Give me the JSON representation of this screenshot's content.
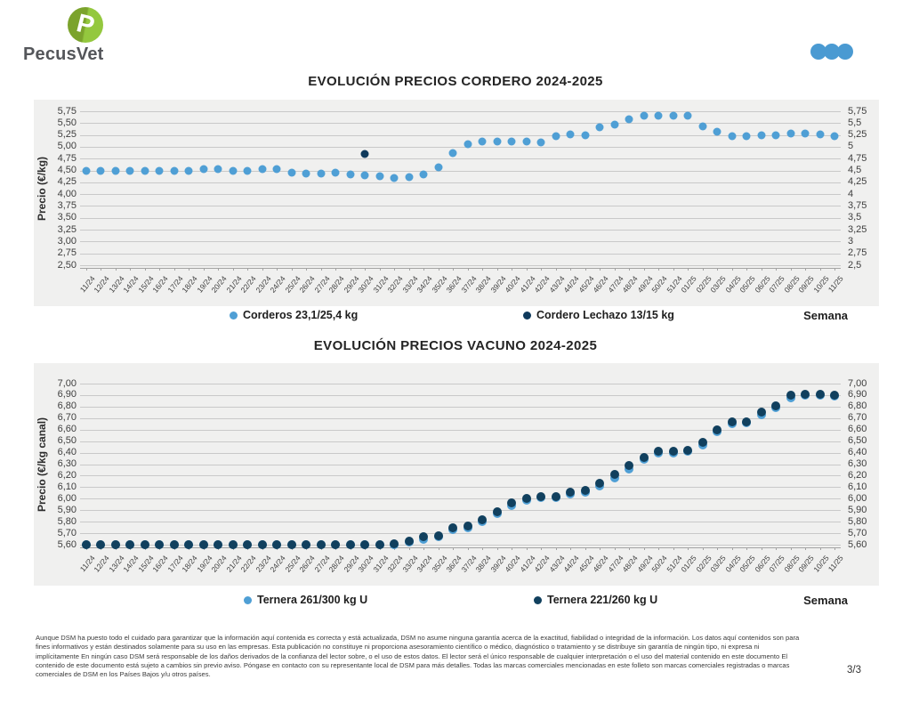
{
  "logo": {
    "text": "PecusVet",
    "letter": "P",
    "green_dark": "#7ba32c",
    "green_light": "#94c83e"
  },
  "header": {
    "dots_color": "#4a9ad2"
  },
  "chart_data": [
    {
      "type": "scatter",
      "title": "EVOLUCIÓN PRECIOS CORDERO 2024-2025",
      "ylabel": "Precio (€/kg)",
      "xlabel": "Semana",
      "ylim": [
        2.5,
        5.75
      ],
      "ystep": 0.25,
      "grid": true,
      "legend_position": "bottom",
      "ytick_labels_left": [
        "5,75",
        "5,50",
        "5,25",
        "5,00",
        "4,75",
        "4,50",
        "4,25",
        "4,00",
        "3,75",
        "3,50",
        "3,25",
        "3,00",
        "2,75",
        "2,50"
      ],
      "ytick_labels_right": [
        "5,75",
        "5,5",
        "5,25",
        "5",
        "4,75",
        "4,5",
        "4,25",
        "4",
        "3,75",
        "3,5",
        "3,25",
        "3",
        "2,75",
        "2,5"
      ],
      "categories": [
        "11/24",
        "12/24",
        "13/24",
        "14/24",
        "15/24",
        "16/24",
        "17/24",
        "18/24",
        "19/24",
        "20/24",
        "21/24",
        "22/24",
        "23/24",
        "24/24",
        "25/24",
        "26/24",
        "27/24",
        "28/24",
        "29/24",
        "30/24",
        "31/24",
        "32/24",
        "33/24",
        "34/24",
        "35/24",
        "36/24",
        "37/24",
        "38/24",
        "39/24",
        "40/24",
        "41/24",
        "42/24",
        "43/24",
        "44/24",
        "45/24",
        "46/24",
        "47/24",
        "48/24",
        "49/24",
        "50/24",
        "51/24",
        "01/25",
        "02/25",
        "03/25",
        "04/25",
        "05/25",
        "06/25",
        "07/25",
        "08/25",
        "09/25",
        "10/25",
        "11/25"
      ],
      "series": [
        {
          "name": "Corderos 23,1/25,4 kg",
          "color": "#4f9fd5",
          "values": [
            4.5,
            4.5,
            4.5,
            4.5,
            4.5,
            4.5,
            4.5,
            4.5,
            4.52,
            4.52,
            4.5,
            4.5,
            4.52,
            4.52,
            4.45,
            4.43,
            4.44,
            4.45,
            4.42,
            4.4,
            4.37,
            4.35,
            4.36,
            4.41,
            4.56,
            4.86,
            5.05,
            5.12,
            5.12,
            5.12,
            5.12,
            5.1,
            5.23,
            5.26,
            5.24,
            5.41,
            5.47,
            5.58,
            5.65,
            5.65,
            5.65,
            5.65,
            5.44,
            5.31,
            5.23,
            5.23,
            5.24,
            5.24,
            5.28,
            5.28,
            5.27,
            5.22
          ]
        },
        {
          "name": "Cordero Lechazo 13/15 kg",
          "color": "#0f3a5c",
          "values": [
            null,
            null,
            null,
            null,
            null,
            null,
            null,
            null,
            null,
            null,
            null,
            null,
            null,
            null,
            null,
            null,
            null,
            null,
            null,
            4.85,
            null,
            null,
            null,
            null,
            null,
            null,
            null,
            null,
            null,
            null,
            null,
            null,
            null,
            null,
            null,
            null,
            null,
            null,
            null,
            null,
            null,
            null,
            null,
            null,
            null,
            null,
            null,
            null,
            null,
            null,
            null,
            null
          ]
        }
      ]
    },
    {
      "type": "scatter",
      "title": "EVOLUCIÓN PRECIOS VACUNO 2024-2025",
      "ylabel": "Precio (€/kg canal)",
      "xlabel": "Semana",
      "ylim": [
        5.6,
        7.0
      ],
      "ystep": 0.1,
      "grid": true,
      "legend_position": "bottom",
      "ytick_labels_left": [
        "7,00",
        "6,90",
        "6,80",
        "6,70",
        "6,60",
        "6,50",
        "6,40",
        "6,30",
        "6,20",
        "6,10",
        "6,00",
        "5,90",
        "5,80",
        "5,70",
        "5,60"
      ],
      "ytick_labels_right": [
        "7,00",
        "6,90",
        "6,80",
        "6,70",
        "6,60",
        "6,50",
        "6,40",
        "6,30",
        "6,20",
        "6,10",
        "6,00",
        "5,90",
        "5,80",
        "5,70",
        "5,60"
      ],
      "categories": [
        "11/24",
        "12/24",
        "13/24",
        "14/24",
        "15/24",
        "16/24",
        "17/24",
        "18/24",
        "19/24",
        "20/24",
        "21/24",
        "22/24",
        "23/24",
        "24/24",
        "25/24",
        "26/24",
        "27/24",
        "28/24",
        "29/24",
        "30/24",
        "31/24",
        "32/24",
        "33/24",
        "34/24",
        "35/24",
        "36/24",
        "37/24",
        "38/24",
        "39/24",
        "40/24",
        "41/24",
        "42/24",
        "43/24",
        "44/24",
        "45/24",
        "46/24",
        "47/24",
        "48/24",
        "49/24",
        "50/24",
        "51/24",
        "01/25",
        "02/25",
        "03/25",
        "04/25",
        "05/25",
        "06/25",
        "07/25",
        "08/25",
        "09/25",
        "10/25",
        "11/25"
      ],
      "series": [
        {
          "name": "Ternera 261/300 kg U",
          "color": "#4f9fd5",
          "values": [
            5.6,
            5.6,
            5.6,
            5.6,
            5.6,
            5.6,
            5.6,
            5.6,
            5.6,
            5.6,
            5.6,
            5.6,
            5.6,
            5.6,
            5.6,
            5.6,
            5.6,
            5.6,
            5.6,
            5.6,
            5.6,
            5.6,
            5.62,
            5.65,
            5.67,
            5.73,
            5.75,
            5.8,
            5.87,
            5.94,
            5.99,
            6.01,
            6.01,
            6.04,
            6.06,
            6.11,
            6.18,
            6.26,
            6.34,
            6.4,
            6.4,
            6.41,
            6.47,
            6.58,
            6.65,
            6.66,
            6.73,
            6.79,
            6.88,
            6.9,
            6.9,
            6.89
          ]
        },
        {
          "name": "Ternera 221/260 kg U",
          "color": "#11405e",
          "values": [
            5.6,
            5.6,
            5.6,
            5.6,
            5.6,
            5.6,
            5.6,
            5.6,
            5.6,
            5.6,
            5.6,
            5.6,
            5.6,
            5.6,
            5.6,
            5.6,
            5.6,
            5.6,
            5.6,
            5.6,
            5.6,
            5.61,
            5.63,
            5.67,
            5.68,
            5.75,
            5.76,
            5.82,
            5.89,
            5.96,
            6.0,
            6.02,
            6.02,
            6.06,
            6.07,
            6.13,
            6.21,
            6.29,
            6.36,
            6.41,
            6.41,
            6.42,
            6.49,
            6.6,
            6.67,
            6.67,
            6.75,
            6.81,
            6.9,
            6.91,
            6.91,
            6.9
          ]
        }
      ]
    }
  ],
  "footer": {
    "lines": [
      "Aunque DSM ha puesto todo el cuidado para garantizar que la información aquí contenida es correcta y está actualizada, DSM no asume ninguna garantía acerca de la exactitud, fiabilidad o integridad de la información. Los datos aquí contenidos son para",
      "fines informativos y están destinados solamente para su uso en las empresas. Esta publicación no constituye ni proporciona asesoramiento científico o médico, diagnóstico o tratamiento y se distribuye sin garantía de ningún tipo, ni expresa ni",
      "implícitamente En ningún caso DSM será responsable de los daños derivados de la confianza del lector sobre, o el uso de estos datos. El lector será el único responsable de cualquier interpretación o el uso del material contenido en este documento El",
      "contenido de este documento está sujeto a cambios sin previo aviso. Póngase en contacto con su representante local de DSM para más detalles. Todas las marcas comerciales mencionadas en este folleto son marcas comerciales registradas o marcas",
      "comerciales de DSM en los Países Bajos y/u otros países."
    ],
    "page": "3/3"
  }
}
